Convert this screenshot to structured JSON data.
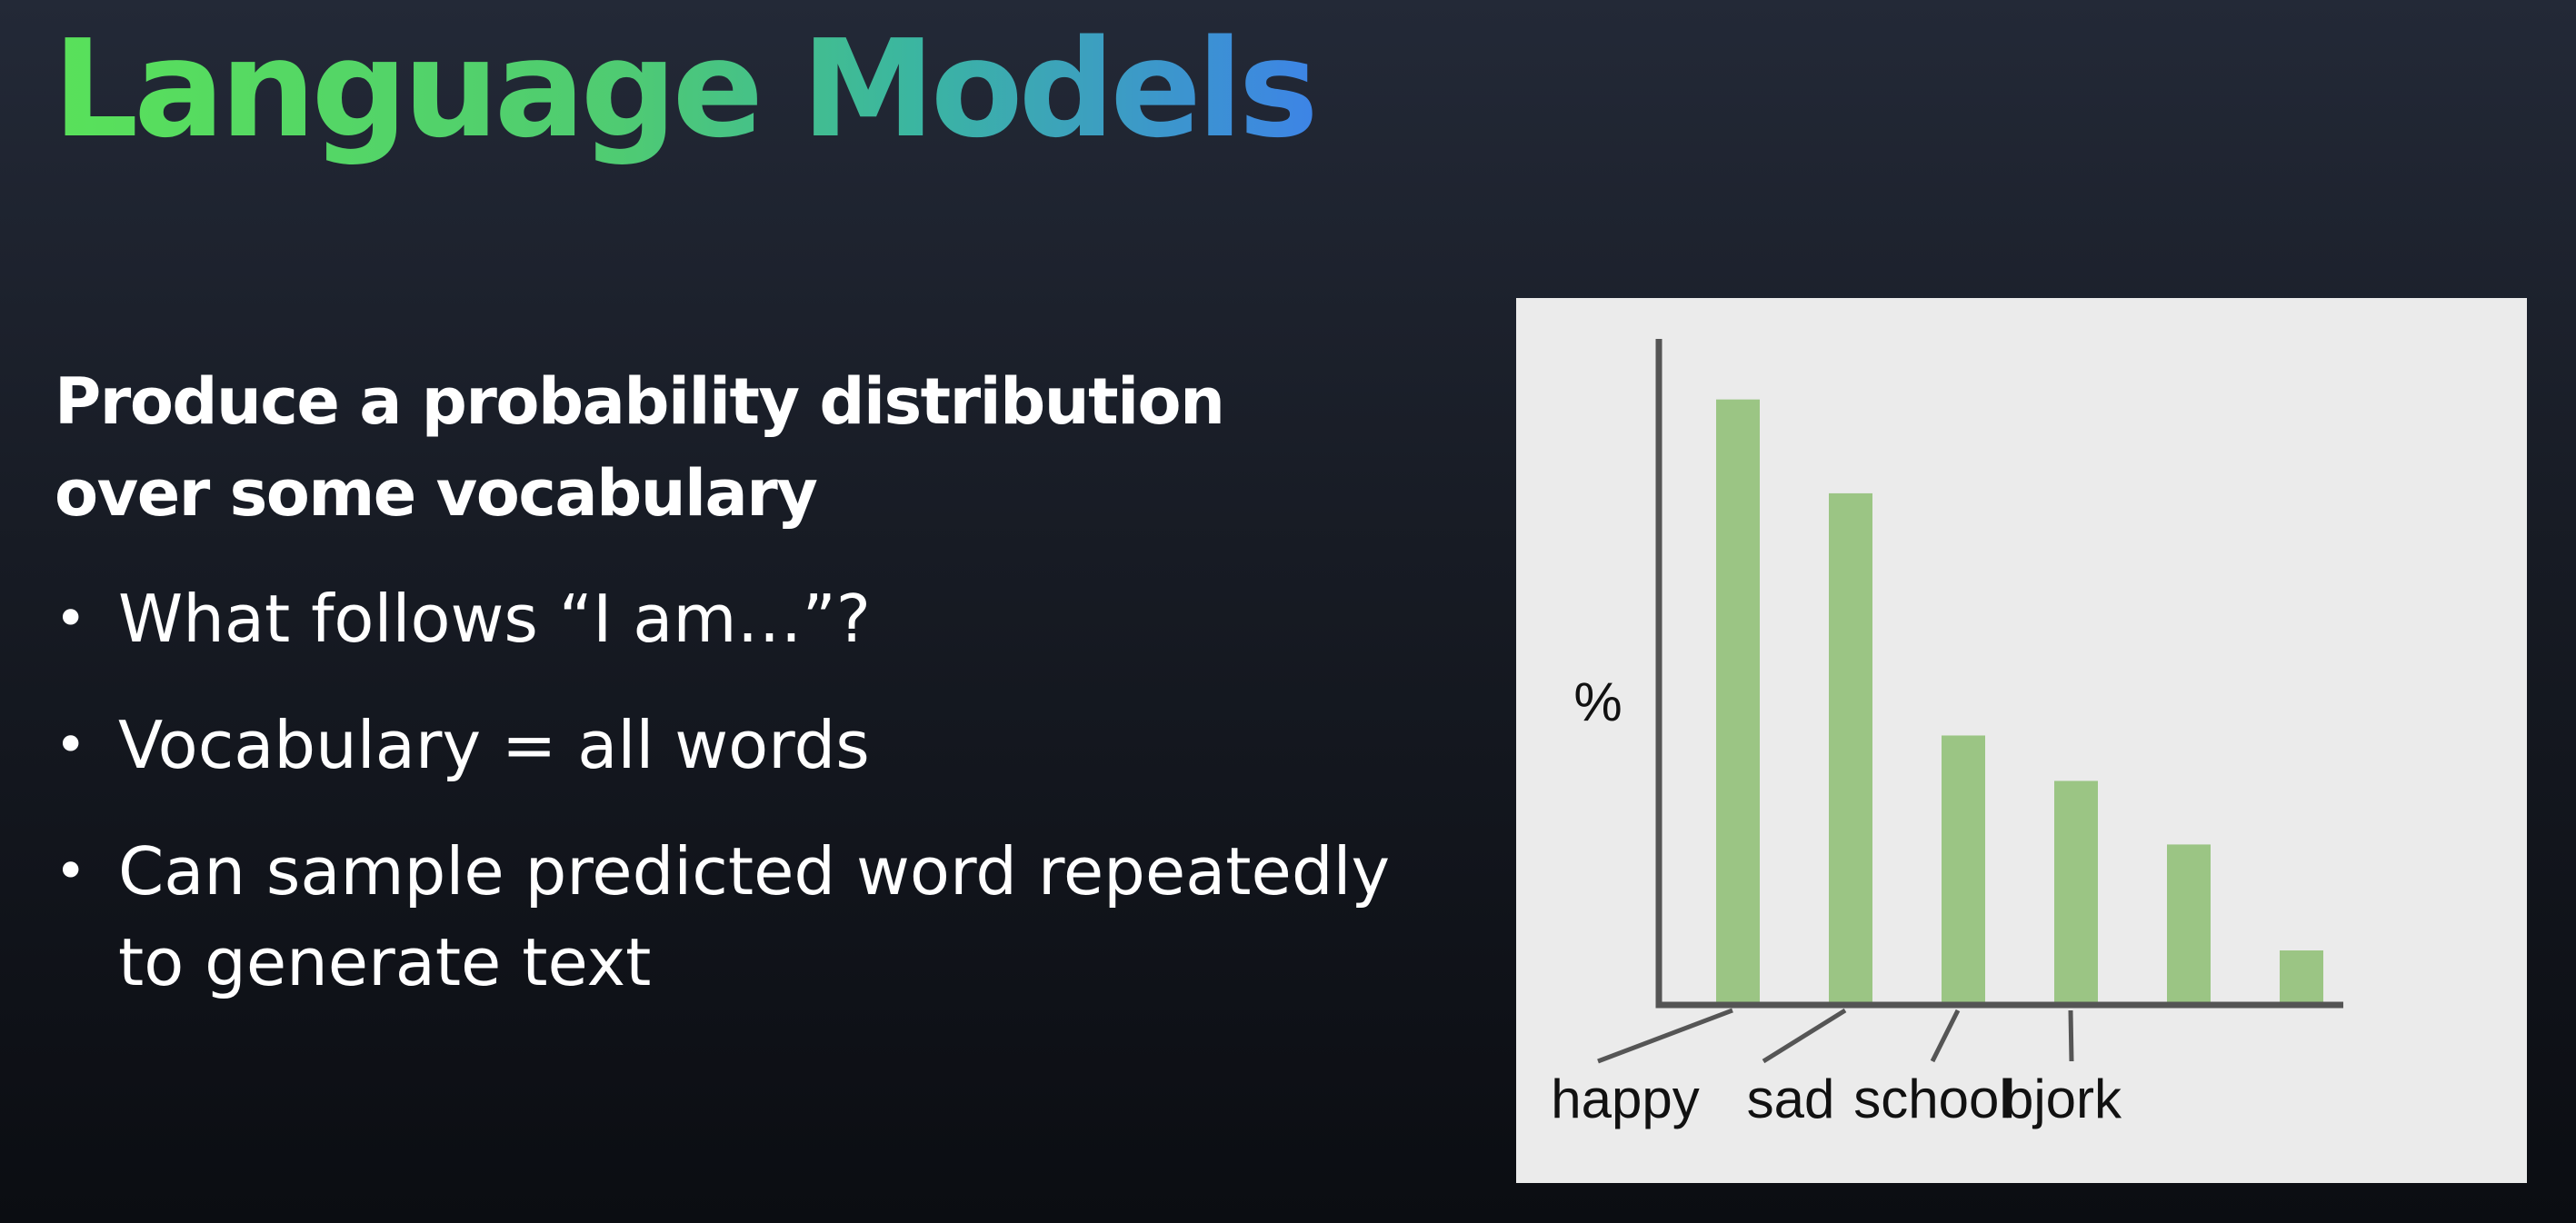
{
  "slide": {
    "title": "Language Models",
    "heading": "Produce a probability distribution over some vocabulary",
    "bullets": [
      "What follows “I am…”?",
      "Vocabulary = all words",
      "Can sample predicted word repeatedly to generate text"
    ],
    "bullet_marker": "•"
  },
  "colors": {
    "title_gradient": [
      "#59e15a",
      "#3bb6a0",
      "#3d84e6"
    ],
    "bar": "#9bc584",
    "chart_background": "#ebebeb",
    "axis": "#555555"
  },
  "chart_data": {
    "type": "bar",
    "ylabel": "%",
    "xlabel": "",
    "categories": [
      "happy",
      "sad",
      "school",
      "bjork",
      "",
      ""
    ],
    "values": [
      100,
      84.5,
      44.5,
      37,
      26.5,
      9
    ],
    "ylim": [
      0,
      110
    ],
    "grid": false,
    "legend": "none"
  }
}
